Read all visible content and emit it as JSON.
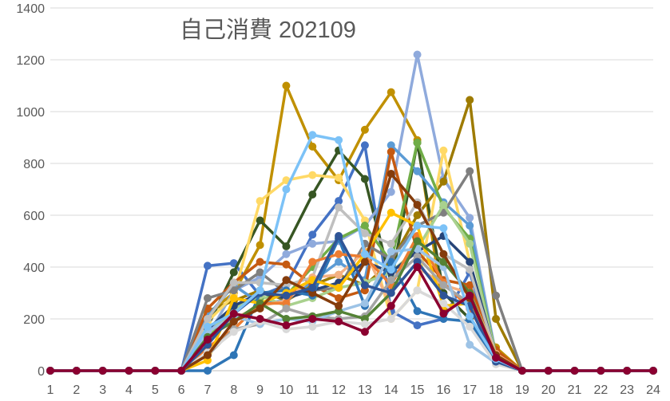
{
  "chart_data": {
    "type": "line",
    "title": "自己消費 202109",
    "xlabel": "",
    "ylabel": "",
    "x": [
      1,
      2,
      3,
      4,
      5,
      6,
      7,
      8,
      9,
      10,
      11,
      12,
      13,
      14,
      15,
      16,
      17,
      18,
      19,
      20,
      21,
      22,
      23,
      24
    ],
    "y_ticks": [
      0,
      200,
      400,
      600,
      800,
      1000,
      1200,
      1400
    ],
    "ylim": [
      0,
      1400
    ],
    "grid": true,
    "legend": "none",
    "series": [
      {
        "color": "#4472c4",
        "values": [
          0,
          0,
          0,
          0,
          0,
          0,
          405,
          415,
          290,
          330,
          525,
          655,
          870,
          230,
          175,
          200,
          380,
          45,
          0,
          0,
          0,
          0,
          0,
          0
        ]
      },
      {
        "color": "#c09000",
        "values": [
          0,
          0,
          0,
          0,
          0,
          0,
          220,
          300,
          485,
          1100,
          865,
          735,
          930,
          1075,
          890,
          230,
          290,
          90,
          0,
          0,
          0,
          0,
          0,
          0
        ]
      },
      {
        "color": "#375623",
        "values": [
          0,
          0,
          0,
          0,
          0,
          0,
          170,
          380,
          580,
          480,
          680,
          850,
          740,
          340,
          880,
          300,
          200,
          40,
          0,
          0,
          0,
          0,
          0,
          0
        ]
      },
      {
        "color": "#8faadc",
        "values": [
          0,
          0,
          0,
          0,
          0,
          0,
          130,
          310,
          360,
          450,
          490,
          500,
          560,
          690,
          1220,
          740,
          590,
          60,
          0,
          0,
          0,
          0,
          0,
          0
        ]
      },
      {
        "color": "#9e7b00",
        "values": [
          0,
          0,
          0,
          0,
          0,
          0,
          230,
          270,
          310,
          270,
          330,
          370,
          330,
          420,
          600,
          730,
          1045,
          200,
          0,
          0,
          0,
          0,
          0,
          0
        ]
      },
      {
        "color": "#ffd966",
        "values": [
          0,
          0,
          0,
          0,
          0,
          0,
          190,
          290,
          655,
          735,
          755,
          745,
          580,
          200,
          310,
          850,
          420,
          50,
          0,
          0,
          0,
          0,
          0,
          0
        ]
      },
      {
        "color": "#5b9bd5",
        "values": [
          0,
          0,
          0,
          0,
          0,
          0,
          210,
          330,
          260,
          270,
          345,
          420,
          350,
          870,
          770,
          650,
          560,
          50,
          0,
          0,
          0,
          0,
          0,
          0
        ]
      },
      {
        "color": "#c55a11",
        "values": [
          0,
          0,
          0,
          0,
          0,
          0,
          240,
          340,
          420,
          410,
          330,
          280,
          310,
          845,
          460,
          350,
          330,
          80,
          0,
          0,
          0,
          0,
          0,
          0
        ]
      },
      {
        "color": "#70ad47",
        "values": [
          0,
          0,
          0,
          0,
          0,
          0,
          120,
          250,
          280,
          290,
          400,
          510,
          560,
          420,
          880,
          630,
          510,
          60,
          0,
          0,
          0,
          0,
          0,
          0
        ]
      },
      {
        "color": "#7f7f7f",
        "values": [
          0,
          0,
          0,
          0,
          0,
          0,
          280,
          310,
          380,
          300,
          310,
          320,
          490,
          430,
          560,
          610,
          770,
          290,
          0,
          0,
          0,
          0,
          0,
          0
        ]
      },
      {
        "color": "#a9d18e",
        "values": [
          0,
          0,
          0,
          0,
          0,
          0,
          140,
          240,
          290,
          250,
          280,
          320,
          340,
          380,
          470,
          640,
          490,
          55,
          0,
          0,
          0,
          0,
          0,
          0
        ]
      },
      {
        "color": "#264478",
        "values": [
          0,
          0,
          0,
          0,
          0,
          0,
          160,
          250,
          300,
          280,
          310,
          340,
          420,
          380,
          460,
          520,
          420,
          55,
          0,
          0,
          0,
          0,
          0,
          0
        ]
      },
      {
        "color": "#bfbfbf",
        "values": [
          0,
          0,
          0,
          0,
          0,
          0,
          200,
          340,
          340,
          330,
          360,
          630,
          530,
          490,
          650,
          450,
          390,
          60,
          0,
          0,
          0,
          0,
          0,
          0
        ]
      },
      {
        "color": "#f4b183",
        "values": [
          0,
          0,
          0,
          0,
          0,
          0,
          120,
          200,
          250,
          270,
          360,
          370,
          460,
          250,
          400,
          330,
          300,
          65,
          0,
          0,
          0,
          0,
          0,
          0
        ]
      },
      {
        "color": "#2e75b6",
        "values": [
          0,
          0,
          0,
          0,
          0,
          0,
          0,
          60,
          300,
          310,
          290,
          510,
          250,
          420,
          230,
          200,
          190,
          40,
          0,
          0,
          0,
          0,
          0,
          0
        ]
      },
      {
        "color": "#ed7d31",
        "values": [
          0,
          0,
          0,
          0,
          0,
          0,
          90,
          160,
          260,
          260,
          420,
          450,
          440,
          330,
          520,
          340,
          240,
          60,
          0,
          0,
          0,
          0,
          0,
          0
        ]
      },
      {
        "color": "#ffc000",
        "values": [
          0,
          0,
          0,
          0,
          0,
          0,
          40,
          280,
          260,
          300,
          350,
          320,
          450,
          610,
          560,
          250,
          260,
          40,
          0,
          0,
          0,
          0,
          0,
          0
        ]
      },
      {
        "color": "#a5a5a5",
        "values": [
          0,
          0,
          0,
          0,
          0,
          0,
          60,
          160,
          180,
          240,
          210,
          200,
          210,
          350,
          440,
          330,
          260,
          45,
          0,
          0,
          0,
          0,
          0,
          0
        ]
      },
      {
        "color": "#9dc3e6",
        "values": [
          0,
          0,
          0,
          0,
          0,
          0,
          150,
          210,
          180,
          200,
          190,
          230,
          260,
          460,
          470,
          400,
          100,
          30,
          0,
          0,
          0,
          0,
          0,
          0
        ]
      },
      {
        "color": "#548235",
        "values": [
          0,
          0,
          0,
          0,
          0,
          0,
          130,
          190,
          260,
          200,
          210,
          230,
          200,
          300,
          500,
          420,
          300,
          50,
          0,
          0,
          0,
          0,
          0,
          0
        ]
      },
      {
        "color": "#d9d9d9",
        "values": [
          0,
          0,
          0,
          0,
          0,
          0,
          70,
          150,
          190,
          160,
          170,
          190,
          180,
          200,
          310,
          260,
          170,
          25,
          0,
          0,
          0,
          0,
          0,
          0
        ]
      },
      {
        "color": "#843c0c",
        "values": [
          0,
          0,
          0,
          0,
          0,
          0,
          60,
          190,
          240,
          350,
          300,
          250,
          420,
          760,
          640,
          450,
          280,
          60,
          0,
          0,
          0,
          0,
          0,
          0
        ]
      },
      {
        "color": "#2f5597",
        "values": [
          0,
          0,
          0,
          0,
          0,
          0,
          100,
          220,
          300,
          290,
          320,
          520,
          330,
          300,
          420,
          290,
          250,
          35,
          0,
          0,
          0,
          0,
          0,
          0
        ]
      },
      {
        "color": "#7cc2f7",
        "values": [
          0,
          0,
          0,
          0,
          0,
          0,
          170,
          220,
          310,
          700,
          910,
          890,
          450,
          390,
          560,
          550,
          210,
          45,
          0,
          0,
          0,
          0,
          0,
          0
        ]
      },
      {
        "color": "#8b0030",
        "values": [
          0,
          0,
          0,
          0,
          0,
          0,
          120,
          220,
          200,
          175,
          200,
          190,
          150,
          250,
          400,
          220,
          290,
          50,
          0,
          0,
          0,
          0,
          0,
          0
        ]
      }
    ]
  }
}
